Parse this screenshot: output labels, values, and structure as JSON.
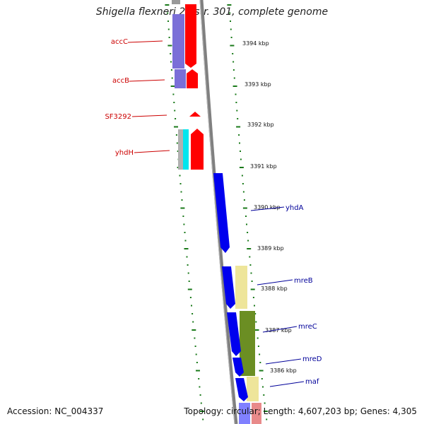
{
  "title": "Shigella flexneri 2a str. 301, complete genome",
  "footer": {
    "accession": "Accession: NC_004337",
    "topology": "Topology: circular; Length: 4,607,203 bp; Genes: 4,305"
  },
  "colors": {
    "backbone": "#808080",
    "tick": "#1a7a1a",
    "reverse_label": "#cc0000",
    "forward_label": "#000099",
    "red_cds": "#ff0000",
    "blue_cds": "#0000ee",
    "violet": "#7b6fd8",
    "cyan": "#00e5ee",
    "khaki": "#eee59a",
    "olive": "#6b8e23"
  },
  "kbp_labels": [
    "3394 kbp",
    "3393 kbp",
    "3392 kbp",
    "3391 kbp",
    "3390 kbp",
    "3389 kbp",
    "3388 kbp",
    "3387 kbp",
    "3386 kbp"
  ],
  "genes_left": [
    "accC",
    "accB",
    "SF3292",
    "yhdH"
  ],
  "genes_right": [
    "yhdA",
    "mreB",
    "mreC",
    "mreD",
    "maf"
  ]
}
